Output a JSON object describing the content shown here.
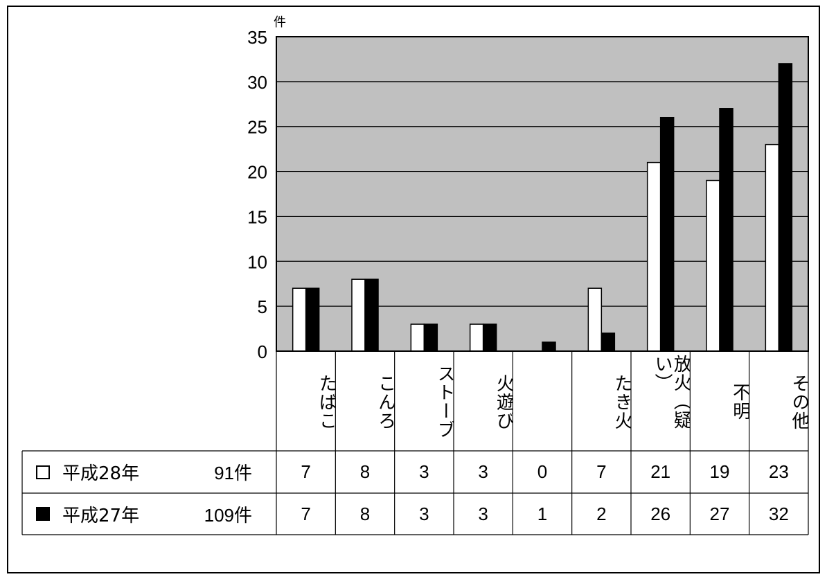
{
  "chart_data": {
    "type": "bar",
    "yunit": "件",
    "ylim": [
      0,
      35
    ],
    "yticks": [
      0,
      5,
      10,
      15,
      20,
      25,
      30,
      35
    ],
    "grid": true,
    "categories": [
      "たばこ",
      "こんろ",
      "ストーブ",
      "火遊び",
      "",
      "たき火",
      "放火（疑い）",
      "不明",
      "その他"
    ],
    "series": [
      {
        "name": "平成28年",
        "total": "91件",
        "color": "#ffffff",
        "values": [
          7,
          8,
          3,
          3,
          0,
          7,
          21,
          19,
          23
        ]
      },
      {
        "name": "平成27年",
        "total": "109件",
        "color": "#000000",
        "values": [
          7,
          8,
          3,
          3,
          1,
          2,
          26,
          27,
          32
        ]
      }
    ]
  },
  "colors": {
    "plot_background": "#c0c0c0",
    "grid": "#000000"
  }
}
